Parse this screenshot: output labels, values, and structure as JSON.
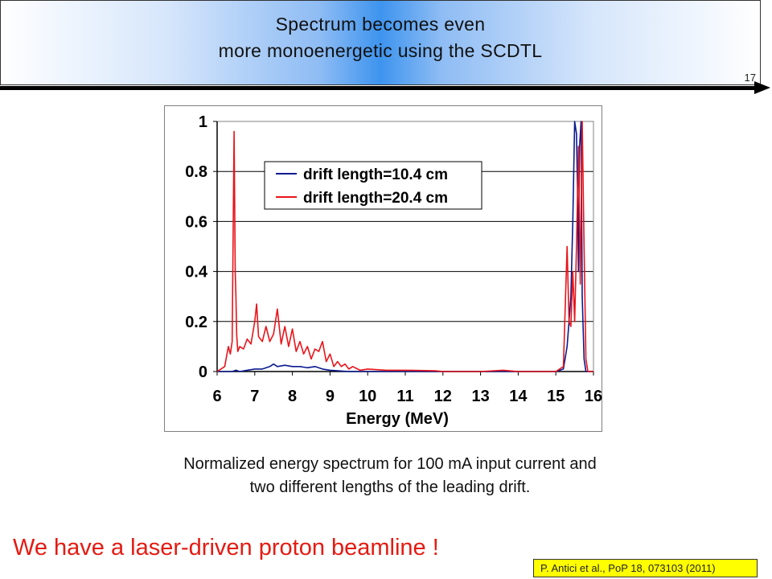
{
  "slide": {
    "title_line1": "Spectrum becomes even",
    "title_line2": "more monoenergetic using the SCDTL",
    "number": "17",
    "caption_line1": "Normalized energy spectrum for 100 mA input current and",
    "caption_line2": "two different lengths of the leading drift.",
    "headline": "We have a laser-driven proton beamline !",
    "reference": "P. Antici et al., PoP 18, 073103 (2011)"
  },
  "colors": {
    "headline": "#e41b12",
    "reference_bg": "#ffff00",
    "series_blue": "#0a1a8f",
    "series_red": "#e8141a"
  },
  "chart_data": {
    "type": "line",
    "title": "",
    "xlabel": "Energy (MeV)",
    "ylabel": "",
    "xlim": [
      6,
      16
    ],
    "ylim": [
      0,
      1
    ],
    "x_ticks": [
      "6",
      "7",
      "8",
      "9",
      "10",
      "11",
      "12",
      "13",
      "14",
      "15",
      "16"
    ],
    "y_ticks": [
      "0",
      "0.2",
      "0.4",
      "0.6",
      "0.8",
      "1"
    ],
    "grid": "horizontal",
    "legend_position": "upper-left",
    "series": [
      {
        "name": "drift length=10.4 cm",
        "color": "#0a1a8f",
        "points": [
          [
            6.0,
            0
          ],
          [
            6.2,
            0.0
          ],
          [
            6.4,
            0.0
          ],
          [
            6.5,
            0.005
          ],
          [
            6.6,
            0.0
          ],
          [
            6.8,
            0.005
          ],
          [
            7.0,
            0.01
          ],
          [
            7.2,
            0.01
          ],
          [
            7.4,
            0.02
          ],
          [
            7.5,
            0.03
          ],
          [
            7.6,
            0.02
          ],
          [
            7.8,
            0.025
          ],
          [
            8.0,
            0.02
          ],
          [
            8.2,
            0.02
          ],
          [
            8.4,
            0.015
          ],
          [
            8.6,
            0.02
          ],
          [
            8.8,
            0.01
          ],
          [
            9.0,
            0.005
          ],
          [
            9.2,
            0.003
          ],
          [
            9.5,
            0.0
          ],
          [
            12.0,
            0.0
          ],
          [
            14.0,
            0.0
          ],
          [
            15.0,
            0.0
          ],
          [
            15.2,
            0.01
          ],
          [
            15.3,
            0.1
          ],
          [
            15.35,
            0.2
          ],
          [
            15.4,
            0.3
          ],
          [
            15.45,
            0.6
          ],
          [
            15.5,
            1.0
          ],
          [
            15.55,
            0.95
          ],
          [
            15.58,
            0.7
          ],
          [
            15.6,
            0.4
          ],
          [
            15.63,
            0.9
          ],
          [
            15.67,
            1.0
          ],
          [
            15.7,
            0.3
          ],
          [
            15.75,
            0.05
          ],
          [
            15.8,
            0.0
          ],
          [
            16.0,
            0.0
          ]
        ]
      },
      {
        "name": "drift length=20.4 cm",
        "color": "#e8141a",
        "points": [
          [
            6.0,
            0.0
          ],
          [
            6.1,
            0.01
          ],
          [
            6.2,
            0.02
          ],
          [
            6.3,
            0.1
          ],
          [
            6.35,
            0.07
          ],
          [
            6.4,
            0.12
          ],
          [
            6.45,
            0.96
          ],
          [
            6.48,
            0.4
          ],
          [
            6.5,
            0.3
          ],
          [
            6.52,
            0.15
          ],
          [
            6.55,
            0.08
          ],
          [
            6.6,
            0.1
          ],
          [
            6.7,
            0.09
          ],
          [
            6.8,
            0.13
          ],
          [
            6.9,
            0.11
          ],
          [
            7.0,
            0.2
          ],
          [
            7.05,
            0.27
          ],
          [
            7.1,
            0.14
          ],
          [
            7.2,
            0.12
          ],
          [
            7.3,
            0.18
          ],
          [
            7.4,
            0.12
          ],
          [
            7.5,
            0.15
          ],
          [
            7.6,
            0.25
          ],
          [
            7.7,
            0.11
          ],
          [
            7.8,
            0.18
          ],
          [
            7.9,
            0.1
          ],
          [
            8.0,
            0.17
          ],
          [
            8.1,
            0.08
          ],
          [
            8.2,
            0.12
          ],
          [
            8.3,
            0.07
          ],
          [
            8.4,
            0.1
          ],
          [
            8.5,
            0.05
          ],
          [
            8.6,
            0.09
          ],
          [
            8.7,
            0.08
          ],
          [
            8.8,
            0.12
          ],
          [
            8.9,
            0.04
          ],
          [
            9.0,
            0.07
          ],
          [
            9.1,
            0.02
          ],
          [
            9.2,
            0.04
          ],
          [
            9.3,
            0.02
          ],
          [
            9.4,
            0.03
          ],
          [
            9.5,
            0.01
          ],
          [
            9.6,
            0.02
          ],
          [
            9.8,
            0.005
          ],
          [
            10.0,
            0.01
          ],
          [
            10.5,
            0.005
          ],
          [
            11.0,
            0.005
          ],
          [
            11.8,
            0.003
          ],
          [
            12.0,
            0.0
          ],
          [
            13.0,
            0.0
          ],
          [
            13.6,
            0.005
          ],
          [
            14.0,
            0.0
          ],
          [
            15.0,
            0.0
          ],
          [
            15.2,
            0.02
          ],
          [
            15.3,
            0.5
          ],
          [
            15.35,
            0.2
          ],
          [
            15.4,
            0.18
          ],
          [
            15.45,
            0.4
          ],
          [
            15.5,
            0.2
          ],
          [
            15.55,
            0.5
          ],
          [
            15.6,
            0.9
          ],
          [
            15.65,
            0.35
          ],
          [
            15.7,
            1.0
          ],
          [
            15.75,
            0.5
          ],
          [
            15.8,
            0.05
          ],
          [
            15.85,
            0.0
          ],
          [
            16.0,
            0.0
          ]
        ]
      }
    ]
  }
}
